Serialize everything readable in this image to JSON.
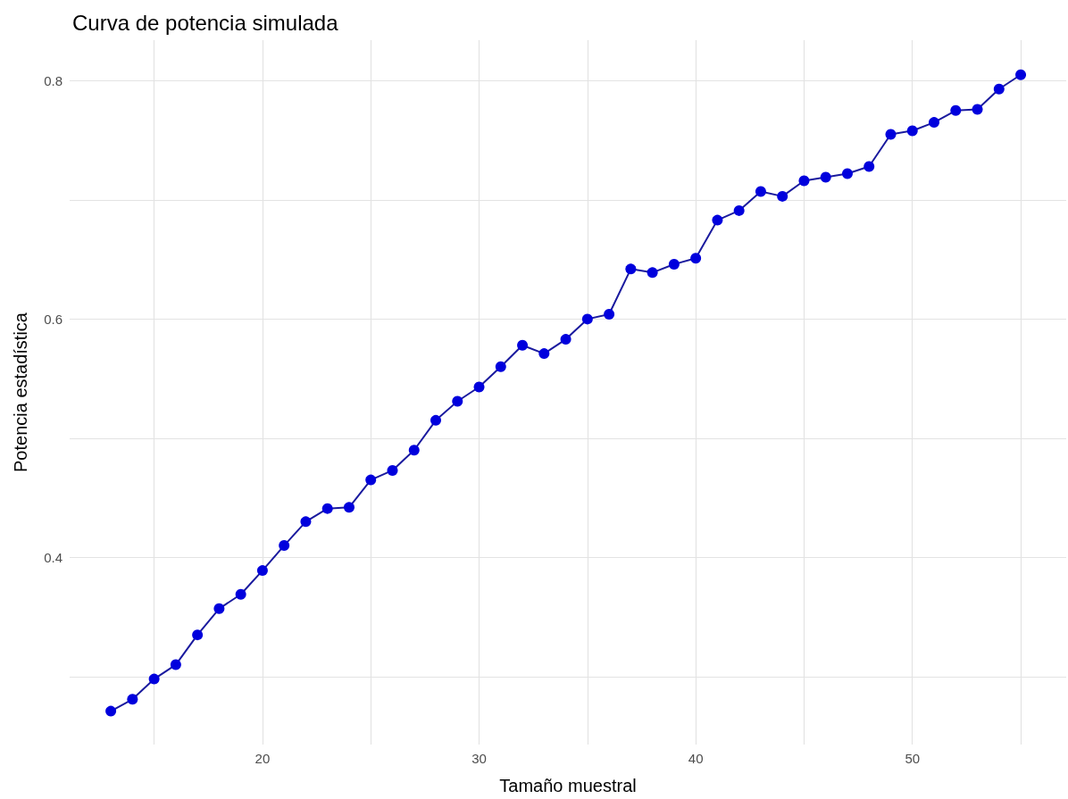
{
  "chart_data": {
    "type": "line",
    "title": "Curva de potencia simulada",
    "xlabel": "Tamaño muestral",
    "ylabel": "Potencia estadística",
    "x": [
      13,
      14,
      15,
      16,
      17,
      18,
      19,
      20,
      21,
      22,
      23,
      24,
      25,
      26,
      27,
      28,
      29,
      30,
      31,
      32,
      33,
      34,
      35,
      36,
      37,
      38,
      39,
      40,
      41,
      42,
      43,
      44,
      45,
      46,
      47,
      48,
      49,
      50,
      51,
      52,
      53,
      54,
      55
    ],
    "series": [
      {
        "color": "#0000dd",
        "values": [
          0.271,
          0.281,
          0.298,
          0.31,
          0.335,
          0.357,
          0.369,
          0.389,
          0.41,
          0.43,
          0.441,
          0.442,
          0.465,
          0.473,
          0.49,
          0.515,
          0.531,
          0.543,
          0.56,
          0.578,
          0.571,
          0.583,
          0.6,
          0.604,
          0.642,
          0.639,
          0.646,
          0.651,
          0.683,
          0.691,
          0.707,
          0.703,
          0.716,
          0.719,
          0.722,
          0.728,
          0.755,
          0.758,
          0.765,
          0.775,
          0.776,
          0.793,
          0.805
        ]
      }
    ],
    "xlim": [
      11.1,
      57.1
    ],
    "ylim": [
      0.243,
      0.834
    ],
    "xticks": [
      {
        "value": 15,
        "label": null
      },
      20,
      {
        "value": 25,
        "label": null
      },
      30,
      {
        "value": 35,
        "label": null
      },
      40,
      {
        "value": 45,
        "label": null
      },
      50,
      {
        "value": 55,
        "label": null
      }
    ],
    "yticks": [
      {
        "value": 0.3,
        "label": null
      },
      0.4,
      {
        "value": 0.5,
        "label": null
      },
      0.6,
      {
        "value": 0.7,
        "label": null
      },
      0.8
    ],
    "grid": true,
    "marker": "circle",
    "line_style": "solid"
  }
}
